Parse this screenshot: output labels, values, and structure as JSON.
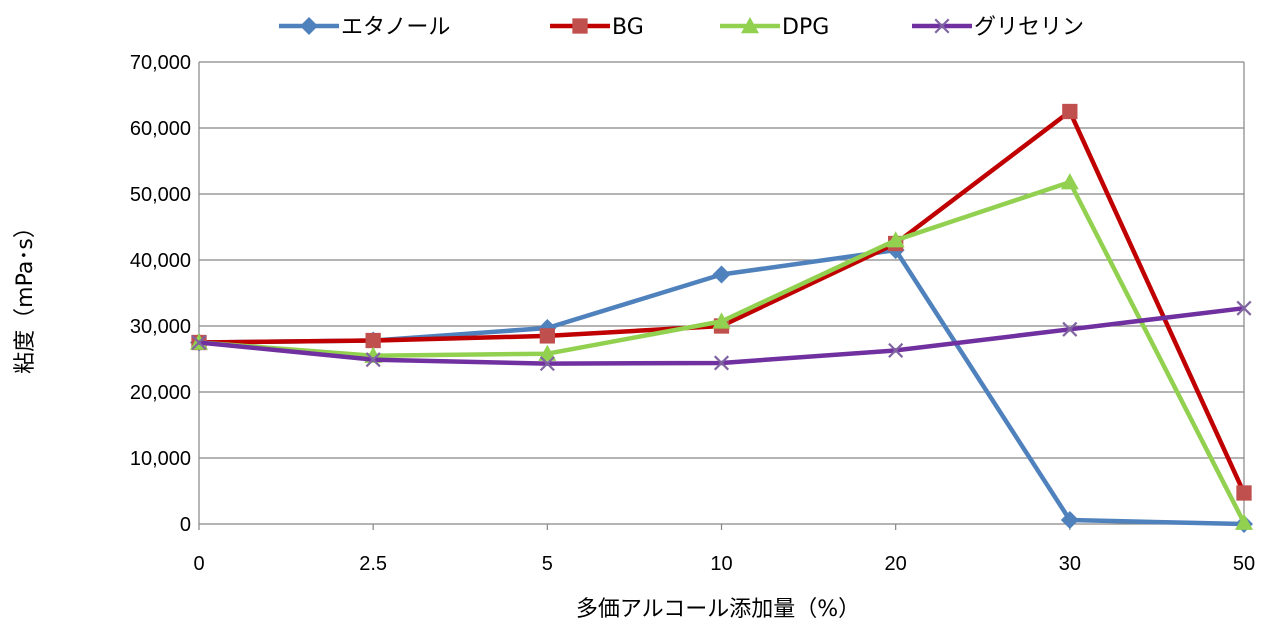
{
  "chart_data": {
    "type": "line",
    "categories": [
      "0",
      "2.5",
      "5",
      "10",
      "20",
      "30",
      "50"
    ],
    "xlabel": "多価アルコール添加量（%）",
    "ylabel": "粘度（mPa･s）",
    "ylim": [
      0,
      70000
    ],
    "yticks": [
      0,
      10000,
      20000,
      30000,
      40000,
      50000,
      60000,
      70000
    ],
    "ytick_labels": [
      "0",
      "10,000",
      "20,000",
      "30,000",
      "40,000",
      "50,000",
      "60,000",
      "70,000"
    ],
    "grid": true,
    "legend_position": "top",
    "series": [
      {
        "name": "エタノール",
        "color": "#4F81BD",
        "marker": "diamond",
        "values": [
          27500,
          27800,
          29700,
          37800,
          41500,
          600,
          0
        ]
      },
      {
        "name": "BG",
        "color": "#C00000",
        "marker_color": "#C0504D",
        "marker": "square",
        "values": [
          27500,
          27800,
          28500,
          30000,
          42500,
          62500,
          4700
        ]
      },
      {
        "name": "DPG",
        "color": "#92D050",
        "marker": "triangle",
        "values": [
          27500,
          25500,
          25800,
          30700,
          43000,
          51800,
          200
        ]
      },
      {
        "name": "グリセリン",
        "color": "#7030A0",
        "marker_color": "#8064A2",
        "marker": "x",
        "values": [
          27500,
          24900,
          24300,
          24400,
          26300,
          29500,
          32700
        ]
      }
    ]
  }
}
